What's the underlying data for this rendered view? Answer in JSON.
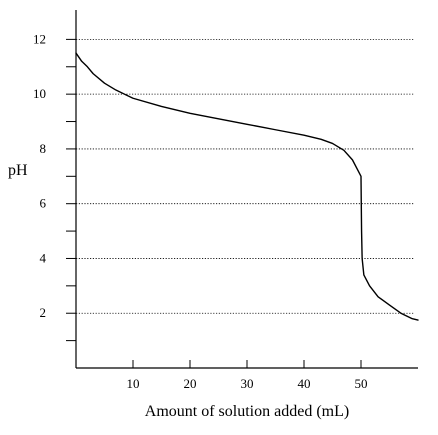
{
  "chart_data": {
    "type": "line",
    "title": "",
    "xlabel": "Amount of solution added (mL)",
    "ylabel": "pH",
    "xlim": [
      0,
      60
    ],
    "ylim": [
      0,
      13
    ],
    "x_ticks": [
      10,
      20,
      30,
      40,
      50
    ],
    "y_ticks": [
      2,
      4,
      6,
      8,
      10,
      12
    ],
    "y_minor_ticks": [
      1,
      3,
      5,
      7,
      9,
      11
    ],
    "grid": "dotted horizontal lines at labeled y ticks",
    "legend": "none",
    "line_color": "#000000",
    "series": [
      {
        "points": [
          [
            0,
            11.5
          ],
          [
            1,
            11.2
          ],
          [
            2,
            11.0
          ],
          [
            3,
            10.75
          ],
          [
            5,
            10.4
          ],
          [
            7,
            10.15
          ],
          [
            10,
            9.85
          ],
          [
            15,
            9.55
          ],
          [
            20,
            9.3
          ],
          [
            25,
            9.1
          ],
          [
            30,
            8.9
          ],
          [
            35,
            8.7
          ],
          [
            40,
            8.5
          ],
          [
            43,
            8.35
          ],
          [
            45,
            8.2
          ],
          [
            47,
            7.95
          ],
          [
            48.5,
            7.6
          ],
          [
            49.5,
            7.2
          ],
          [
            50,
            7.0
          ],
          [
            50.05,
            6.0
          ],
          [
            50.1,
            5.0
          ],
          [
            50.2,
            4.0
          ],
          [
            50.5,
            3.4
          ],
          [
            51.5,
            3.0
          ],
          [
            53,
            2.6
          ],
          [
            55,
            2.3
          ],
          [
            57,
            2.0
          ],
          [
            59,
            1.8
          ],
          [
            60,
            1.75
          ]
        ]
      }
    ]
  }
}
